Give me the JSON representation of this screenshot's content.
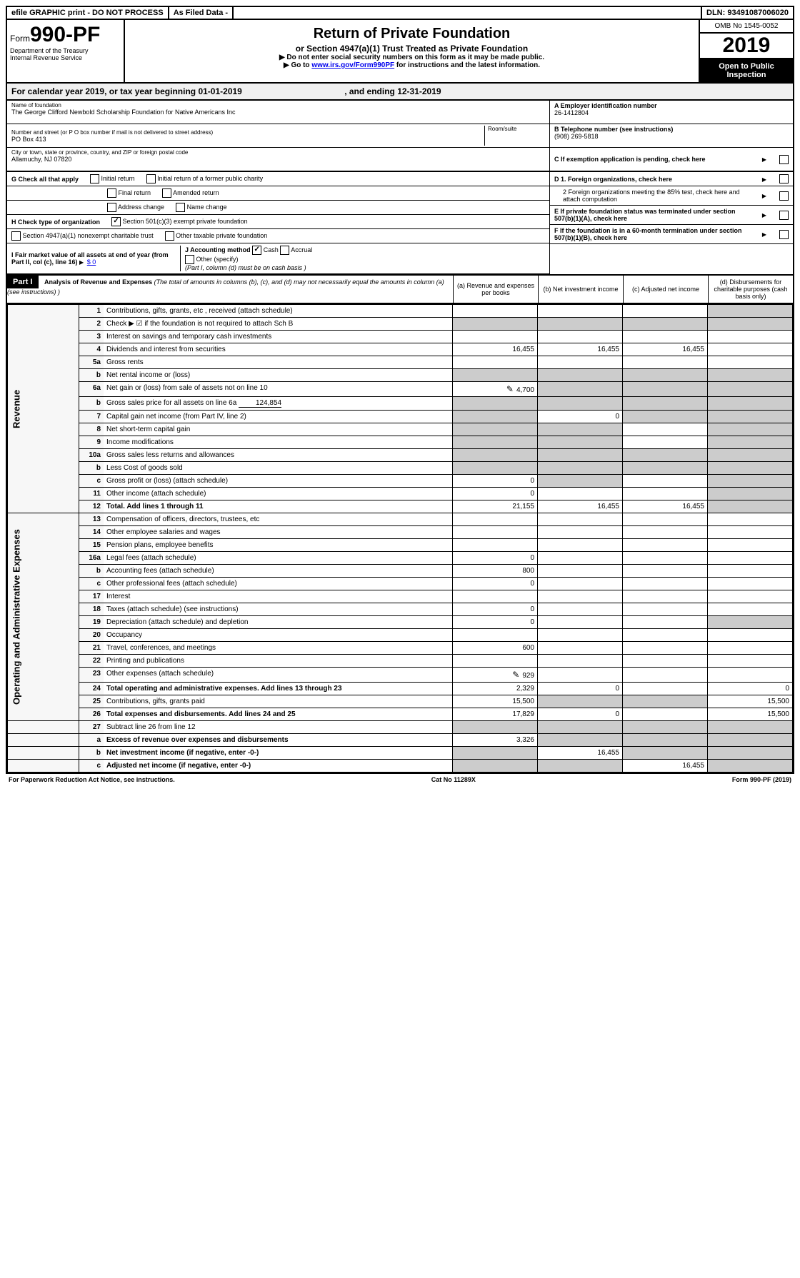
{
  "topbar": {
    "efile": "efile GRAPHIC print - DO NOT PROCESS",
    "asfiled": "As Filed Data -",
    "dln_label": "DLN:",
    "dln": "93491087006020"
  },
  "header": {
    "form_prefix": "Form",
    "form_no": "990-PF",
    "dept": "Department of the Treasury",
    "irs": "Internal Revenue Service",
    "title": "Return of Private Foundation",
    "subtitle": "or Section 4947(a)(1) Trust Treated as Private Foundation",
    "note1": "▶ Do not enter social security numbers on this form as it may be made public.",
    "note2": "▶ Go to ",
    "note2_link": "www.irs.gov/Form990PF",
    "note2_tail": " for instructions and the latest information.",
    "omb": "OMB No 1545-0052",
    "year": "2019",
    "open": "Open to Public Inspection"
  },
  "calyear": {
    "text_a": "For calendar year 2019, or tax year beginning ",
    "begin": "01-01-2019",
    "text_b": ", and ending ",
    "end": "12-31-2019"
  },
  "identity": {
    "name_label": "Name of foundation",
    "name": "The George Clifford Newbold Scholarship Foundation for Native Americans Inc",
    "addr_label": "Number and street (or P O  box number if mail is not delivered to street address)",
    "room_label": "Room/suite",
    "addr": "PO Box 413",
    "city_label": "City or town, state or province, country, and ZIP or foreign postal code",
    "city": "Allamuchy, NJ  07820",
    "a_label": "A Employer identification number",
    "ein": "26-1412804",
    "b_label": "B Telephone number (see instructions)",
    "phone": "(908) 269-5818",
    "c_label": "C If exemption application is pending, check here"
  },
  "checks": {
    "g_label": "G Check all that apply",
    "g_opts": [
      "Initial return",
      "Initial return of a former public charity",
      "Final return",
      "Amended return",
      "Address change",
      "Name change"
    ],
    "h_label": "H Check type of organization",
    "h_opts": [
      "Section 501(c)(3) exempt private foundation",
      "Section 4947(a)(1) nonexempt charitable trust",
      "Other taxable private foundation"
    ],
    "h_checked": 0,
    "i_label": "I Fair market value of all assets at end of year (from Part II, col  (c), line 16)",
    "i_val": "$  0",
    "j_label": "J Accounting method",
    "j_opts": [
      "Cash",
      "Accrual",
      "Other (specify)"
    ],
    "j_checked": 0,
    "j_note": "(Part I, column (d) must be on cash basis )",
    "d1": "D 1. Foreign organizations, check here",
    "d2": "2 Foreign organizations meeting the 85% test, check here and attach computation",
    "e": "E  If private foundation status was terminated under section 507(b)(1)(A), check here",
    "f": "F  If the foundation is in a 60-month termination under section 507(b)(1)(B), check here"
  },
  "part1": {
    "label": "Part I",
    "title": "Analysis of Revenue and Expenses",
    "title_note": " (The total of amounts in columns (b), (c), and (d) may not necessarily equal the amounts in column (a) (see instructions) )",
    "cols": {
      "a": "(a) Revenue and expenses per books",
      "b": "(b) Net investment income",
      "c": "(c) Adjusted net income",
      "d": "(d) Disbursements for charitable purposes (cash basis only)"
    }
  },
  "sections": {
    "revenue": "Revenue",
    "expenses": "Operating and Administrative Expenses"
  },
  "rows": [
    {
      "n": "1",
      "d": "Contributions, gifts, grants, etc , received (attach schedule)",
      "a": "",
      "b": "",
      "c": "",
      "dd": "",
      "dShade": true
    },
    {
      "n": "2",
      "d": "Check ▶ ☑ if the foundation is not required to attach Sch B",
      "noVal": true
    },
    {
      "n": "3",
      "d": "Interest on savings and temporary cash investments",
      "a": "",
      "b": "",
      "c": "",
      "dd": ""
    },
    {
      "n": "4",
      "d": "Dividends and interest from securities",
      "a": "16,455",
      "b": "16,455",
      "c": "16,455",
      "dd": ""
    },
    {
      "n": "5a",
      "d": "Gross rents",
      "a": "",
      "b": "",
      "c": "",
      "dd": ""
    },
    {
      "n": "b",
      "d": "Net rental income or (loss)",
      "noVal": true,
      "inline": true
    },
    {
      "n": "6a",
      "d": "Net gain or (loss) from sale of assets not on line 10",
      "a": "4,700",
      "icon": true,
      "bShade": true,
      "cShade": true,
      "dShade": true
    },
    {
      "n": "b",
      "d": "Gross sales price for all assets on line 6a",
      "inline": true,
      "inlineVal": "124,854",
      "noVal": true
    },
    {
      "n": "7",
      "d": "Capital gain net income (from Part IV, line 2)",
      "aShade": true,
      "b": "0",
      "cShade": true,
      "dShade": true
    },
    {
      "n": "8",
      "d": "Net short-term capital gain",
      "aShade": true,
      "bShade": true,
      "c": "",
      "dShade": true
    },
    {
      "n": "9",
      "d": "Income modifications",
      "aShade": true,
      "bShade": true,
      "c": "",
      "dShade": true
    },
    {
      "n": "10a",
      "d": "Gross sales less returns and allowances",
      "inline": true,
      "noVal": true
    },
    {
      "n": "b",
      "d": "Less  Cost of goods sold",
      "inline": true,
      "noVal": true
    },
    {
      "n": "c",
      "d": "Gross profit or (loss) (attach schedule)",
      "a": "0",
      "bShade": true,
      "c": "",
      "dShade": true
    },
    {
      "n": "11",
      "d": "Other income (attach schedule)",
      "a": "0",
      "b": "",
      "c": "",
      "dShade": true
    },
    {
      "n": "12",
      "d": "Total. Add lines 1 through 11",
      "bold": true,
      "a": "21,155",
      "b": "16,455",
      "c": "16,455",
      "dShade": true
    }
  ],
  "exp_rows": [
    {
      "n": "13",
      "d": "Compensation of officers, directors, trustees, etc",
      "a": "",
      "b": "",
      "c": "",
      "dd": ""
    },
    {
      "n": "14",
      "d": "Other employee salaries and wages",
      "a": "",
      "b": "",
      "c": "",
      "dd": ""
    },
    {
      "n": "15",
      "d": "Pension plans, employee benefits",
      "a": "",
      "b": "",
      "c": "",
      "dd": ""
    },
    {
      "n": "16a",
      "d": "Legal fees (attach schedule)",
      "a": "0",
      "b": "",
      "c": "",
      "dd": ""
    },
    {
      "n": "b",
      "d": "Accounting fees (attach schedule)",
      "a": "800",
      "b": "",
      "c": "",
      "dd": ""
    },
    {
      "n": "c",
      "d": "Other professional fees (attach schedule)",
      "a": "0",
      "b": "",
      "c": "",
      "dd": ""
    },
    {
      "n": "17",
      "d": "Interest",
      "a": "",
      "b": "",
      "c": "",
      "dd": ""
    },
    {
      "n": "18",
      "d": "Taxes (attach schedule) (see instructions)",
      "a": "0",
      "b": "",
      "c": "",
      "dd": ""
    },
    {
      "n": "19",
      "d": "Depreciation (attach schedule) and depletion",
      "a": "0",
      "b": "",
      "c": "",
      "dShade": true
    },
    {
      "n": "20",
      "d": "Occupancy",
      "a": "",
      "b": "",
      "c": "",
      "dd": ""
    },
    {
      "n": "21",
      "d": "Travel, conferences, and meetings",
      "a": "600",
      "b": "",
      "c": "",
      "dd": ""
    },
    {
      "n": "22",
      "d": "Printing and publications",
      "a": "",
      "b": "",
      "c": "",
      "dd": ""
    },
    {
      "n": "23",
      "d": "Other expenses (attach schedule)",
      "a": "929",
      "icon": true,
      "b": "",
      "c": "",
      "dd": ""
    },
    {
      "n": "24",
      "d": "Total operating and administrative expenses. Add lines 13 through 23",
      "bold": true,
      "a": "2,329",
      "b": "0",
      "c": "",
      "dd": "0"
    },
    {
      "n": "25",
      "d": "Contributions, gifts, grants paid",
      "a": "15,500",
      "bShade": true,
      "cShade": true,
      "dd": "15,500"
    },
    {
      "n": "26",
      "d": "Total expenses and disbursements. Add lines 24 and 25",
      "bold": true,
      "a": "17,829",
      "b": "0",
      "c": "",
      "dd": "15,500"
    }
  ],
  "bottom_rows": [
    {
      "n": "27",
      "d": "Subtract line 26 from line 12",
      "noVal": true,
      "allShade": true
    },
    {
      "n": "a",
      "d": "Excess of revenue over expenses and disbursements",
      "bold": true,
      "a": "3,326",
      "bShade": true,
      "cShade": true,
      "dShade": true
    },
    {
      "n": "b",
      "d": "Net investment income (if negative, enter -0-)",
      "bold": true,
      "aShade": true,
      "b": "16,455",
      "cShade": true,
      "dShade": true
    },
    {
      "n": "c",
      "d": "Adjusted net income (if negative, enter -0-)",
      "bold": true,
      "aShade": true,
      "bShade": true,
      "c": "16,455",
      "dShade": true
    }
  ],
  "footer": {
    "left": "For Paperwork Reduction Act Notice, see instructions.",
    "mid": "Cat  No  11289X",
    "right": "Form 990-PF (2019)"
  }
}
